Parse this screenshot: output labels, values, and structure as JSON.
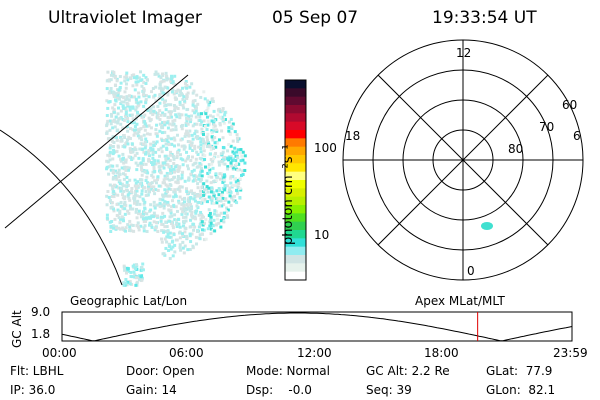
{
  "header": {
    "instrument": "Ultraviolet Imager",
    "date": "05 Sep 07",
    "time": "19:33:54 UT"
  },
  "colorbar": {
    "unit_label": "photon cm⁻²s⁻¹",
    "tick_labels": [
      "100",
      "10"
    ],
    "colors": [
      "#0a0f2e",
      "#3a0a2a",
      "#600a30",
      "#8a0a30",
      "#b00a30",
      "#d80a28",
      "#ff0000",
      "#ff7a00",
      "#ffa800",
      "#ffc800",
      "#ffe600",
      "#ffff80",
      "#f0ff00",
      "#d8f000",
      "#b8f000",
      "#88f000",
      "#50e020",
      "#30d050",
      "#20d890",
      "#30e0d8",
      "#90ecf0",
      "#d0e4e4",
      "#e6f2ec",
      "#ffffff"
    ]
  },
  "polar": {
    "mlt_labels": [
      "12",
      "18",
      "6",
      "0"
    ],
    "lat_labels": [
      "60",
      "70",
      "80"
    ]
  },
  "timeline": {
    "left_label": "Geographic Lat/Lon",
    "right_label": "Apex MLat/MLT",
    "axis_label": "GC Alt",
    "y_ticks": [
      "9.0",
      "1.8"
    ],
    "x_ticks": [
      "00:00",
      "06:00",
      "12:00",
      "18:00",
      "23:59"
    ],
    "current_time_fraction": 0.815,
    "line_color": "#e00000"
  },
  "status": {
    "flt": "Flt: LBHL",
    "ip": "IP: 36.0",
    "door": "Door: Open",
    "gain": "Gain: 14",
    "mode": "Mode: Normal",
    "dsp": "Dsp:    -0.0",
    "gc_alt": "GC Alt: 2.2 Re",
    "seq": "Seq: 39",
    "glat": "GLat:  77.9",
    "glon": "GLon:  82.1"
  }
}
